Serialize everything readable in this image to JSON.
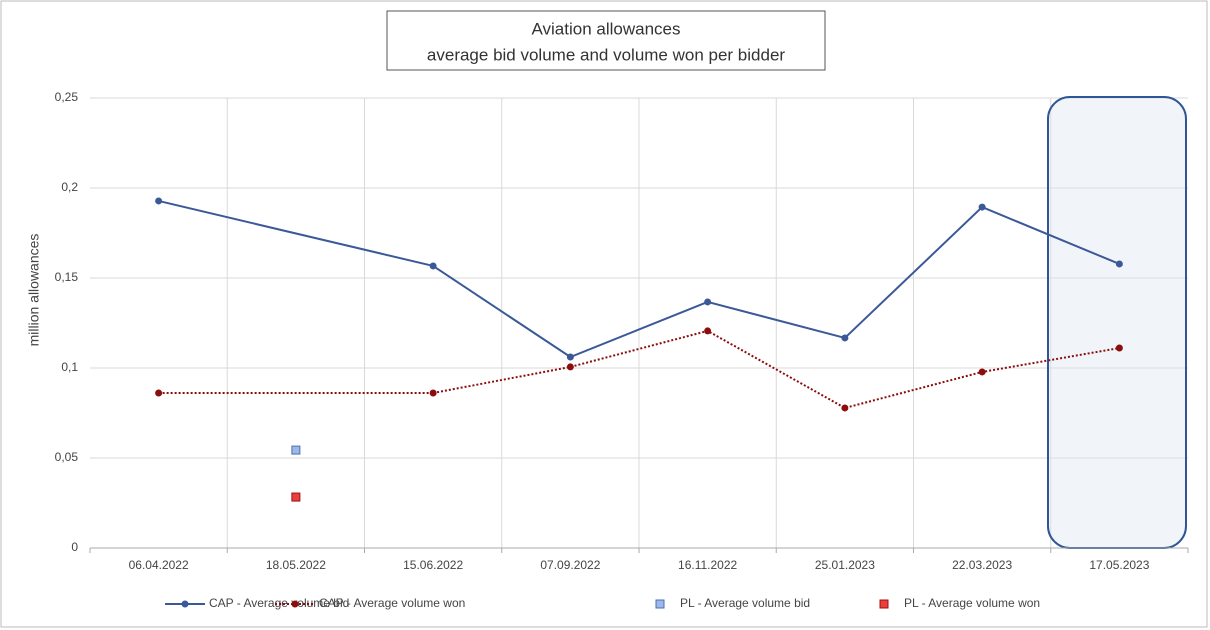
{
  "chart_data": {
    "type": "line",
    "title": "Aviation allowances",
    "subtitle": "average bid volume and volume won per bidder",
    "y_label": "million allowances",
    "categories": [
      "06.04.2022",
      "18.05.2022",
      "15.06.2022",
      "07.09.2022",
      "16.11.2022",
      "25.01.2023",
      "22.03.2023",
      "17.05.2023"
    ],
    "series": [
      {
        "name": "CAP - Average volume bid",
        "color": "#3b5998",
        "line_style": "solid",
        "marker": "circle",
        "values": [
          0.1928,
          null,
          0.1567,
          0.1061,
          0.1367,
          0.1167,
          0.1894,
          0.1578
        ]
      },
      {
        "name": "CAP - Average volume won",
        "color": "#8b0d0d",
        "line_style": "dotted",
        "marker": "circle",
        "values": [
          0.0861,
          null,
          0.0861,
          0.1006,
          0.1206,
          0.0778,
          0.0978,
          0.1111
        ]
      },
      {
        "name": "PL - Average volume bid",
        "color": "#9db8e6",
        "line_style": "none",
        "marker": "square",
        "values": [
          null,
          0.0544,
          null,
          null,
          null,
          null,
          null,
          null
        ]
      },
      {
        "name": "PL - Average volume won",
        "color": "#e8403c",
        "line_style": "none",
        "marker": "square",
        "values": [
          null,
          0.0283,
          null,
          null,
          null,
          null,
          null,
          null
        ]
      }
    ],
    "connect_gaps": true,
    "ylim": [
      0,
      0.25
    ],
    "yticks": [
      0,
      {
        "value": 0.05,
        "label": "0,05"
      },
      {
        "value": 0.1,
        "label": "0,1"
      },
      {
        "value": 0.15,
        "label": "0,15"
      },
      {
        "value": 0.2,
        "label": "0,2"
      },
      {
        "value": 0.25,
        "label": "0,25"
      }
    ],
    "grid": true,
    "legend": "bottom"
  }
}
